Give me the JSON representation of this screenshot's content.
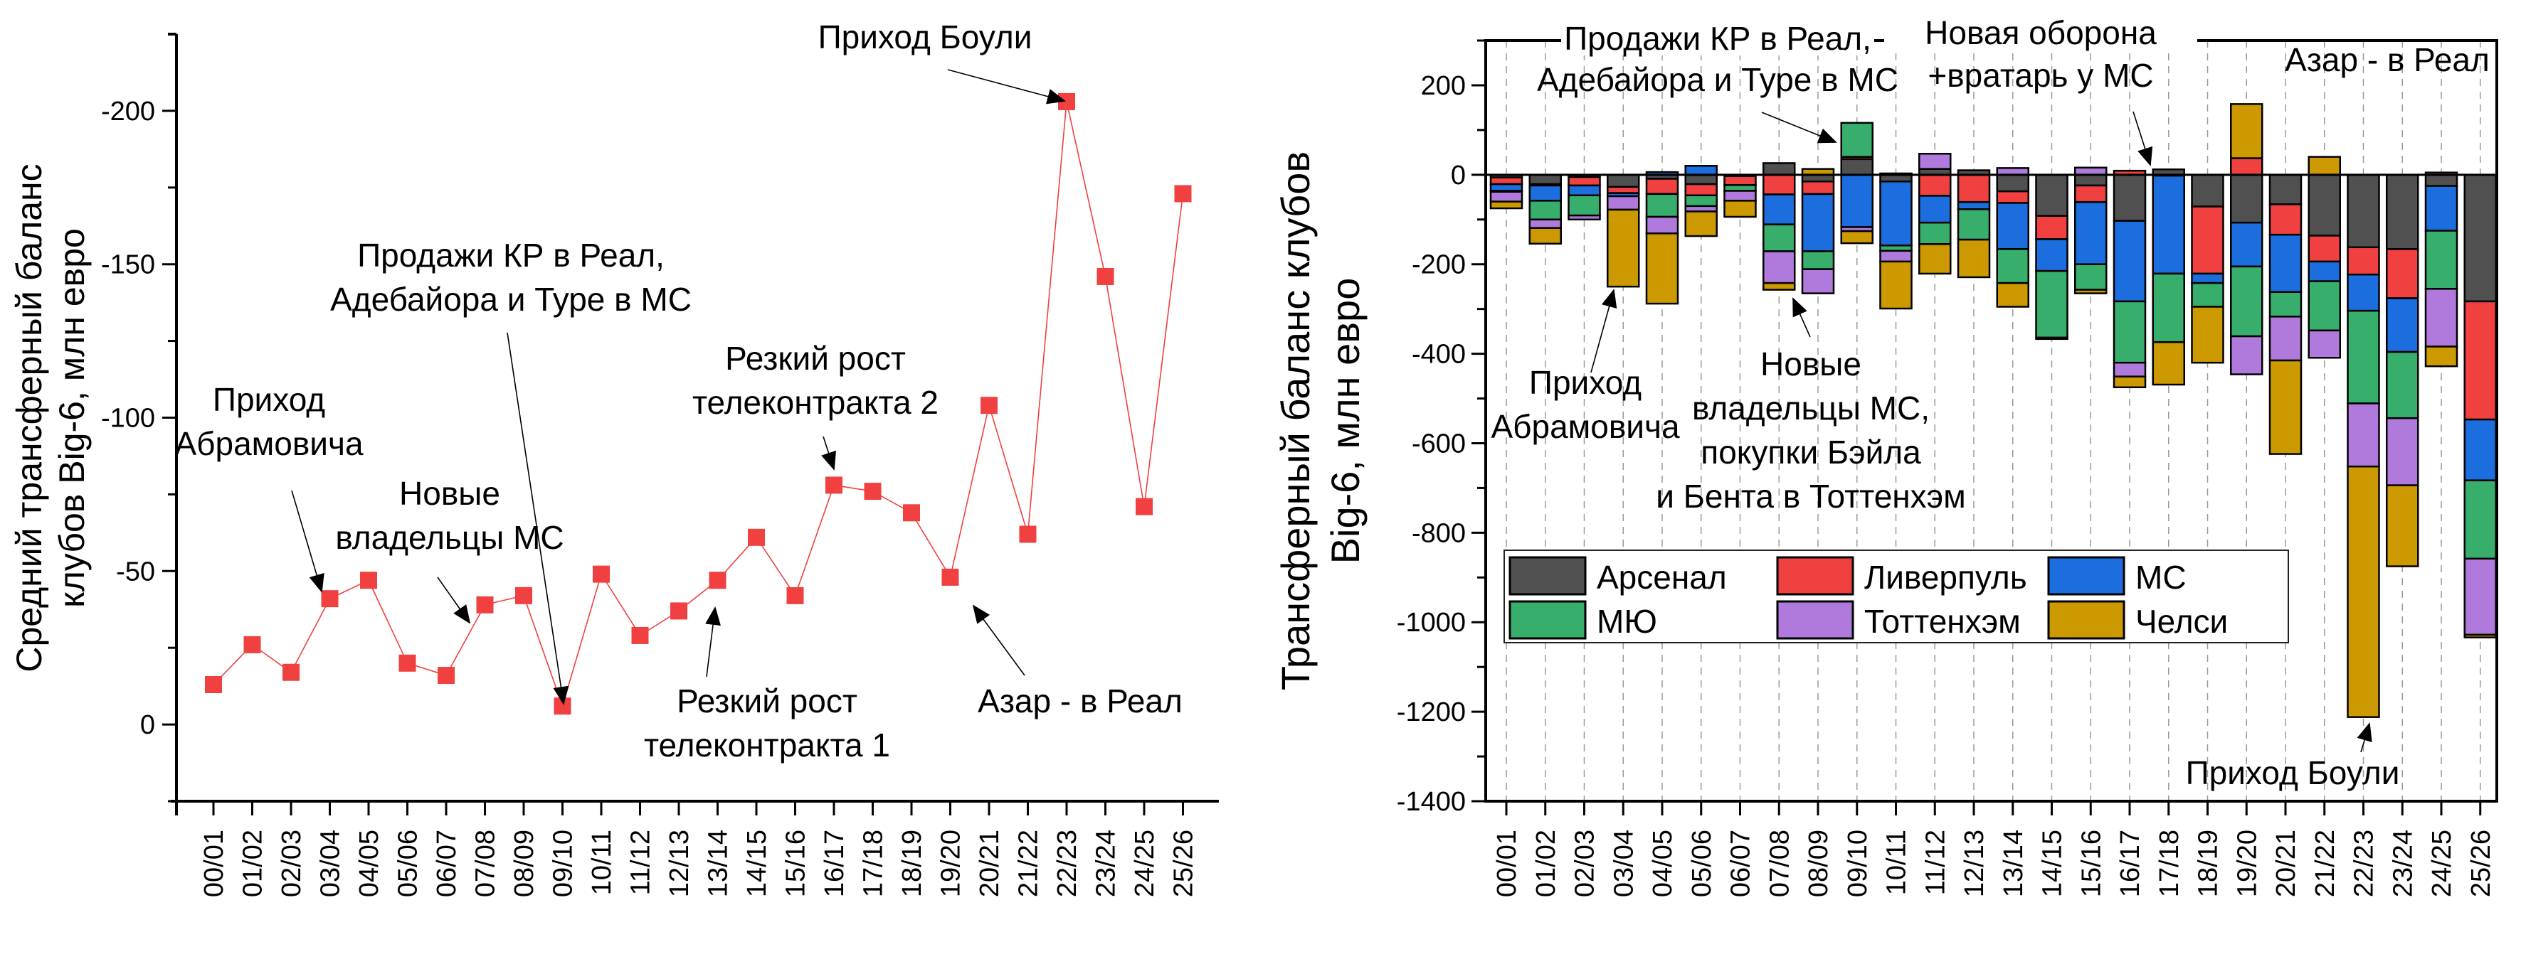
{
  "chart_data": [
    {
      "type": "line",
      "title": "",
      "xlabel": "",
      "ylabel": "Средний трансферный баланс клубов Big-6, млн евро",
      "ylabel_lines": [
        "Средний трансферный баланс",
        "клубов Big-6, млн евро"
      ],
      "y_inverted": true,
      "ylim": [
        25,
        -225
      ],
      "yticks": [
        0,
        -50,
        -100,
        -150,
        -200
      ],
      "grid": false,
      "categories": [
        "00/01",
        "01/02",
        "02/03",
        "03/04",
        "04/05",
        "05/06",
        "06/07",
        "07/08",
        "08/09",
        "09/10",
        "10/11",
        "11/12",
        "12/13",
        "13/14",
        "14/15",
        "15/16",
        "16/17",
        "17/18",
        "18/19",
        "19/20",
        "20/21",
        "21/22",
        "22/23",
        "23/24",
        "24/25",
        "25/26"
      ],
      "series": [
        {
          "name": "Средний трансферный баланс Big-6",
          "color": "#f04040",
          "marker": "square",
          "values": [
            -13,
            -26,
            -17,
            -41,
            -47,
            -20,
            -16,
            -39,
            -42,
            -6,
            -49,
            -29,
            -37,
            -47,
            -61,
            -42,
            -78,
            -76,
            -69,
            -48,
            -104,
            -62,
            -203,
            -146,
            -71,
            -173
          ]
        }
      ],
      "annotations": [
        {
          "lines": [
            "Приход",
            "Абрамовича"
          ],
          "target": "03/04"
        },
        {
          "lines": [
            "Новые",
            "владельцы МС"
          ],
          "target": "07/08"
        },
        {
          "lines": [
            "Продажи КР в Реал,",
            "Адебайора и Туре в МС"
          ],
          "target": "09/10"
        },
        {
          "lines": [
            "Резкий рост",
            "телеконтракта 1"
          ],
          "target": "13/14"
        },
        {
          "lines": [
            "Резкий рост",
            "телеконтракта 2"
          ],
          "target": "16/17"
        },
        {
          "lines": [
            "Азар - в Реал"
          ],
          "target": "19/20"
        },
        {
          "lines": [
            "Приход Боули"
          ],
          "target": "22/23"
        }
      ]
    },
    {
      "type": "bar",
      "stacked": true,
      "title": "",
      "xlabel": "",
      "ylabel": "Трансферный баланс клубов Big-6, млн евро",
      "ylabel_lines": [
        "Трансферный баланс клубов",
        "Big-6, млн евро"
      ],
      "ylim": [
        -1400,
        300
      ],
      "yticks": [
        200,
        0,
        -200,
        -400,
        -600,
        -800,
        -1000,
        -1200,
        -1400
      ],
      "grid": "vertical dashed",
      "legend_position": "lower-left",
      "categories": [
        "00/01",
        "01/02",
        "02/03",
        "03/04",
        "04/05",
        "05/06",
        "06/07",
        "07/08",
        "08/09",
        "09/10",
        "10/11",
        "11/12",
        "12/13",
        "13/14",
        "14/15",
        "15/16",
        "16/17",
        "17/18",
        "18/19",
        "19/20",
        "20/21",
        "21/22",
        "22/23",
        "23/24",
        "24/25",
        "25/26"
      ],
      "series": [
        {
          "name": "Арсенал",
          "color": "#505050",
          "values": [
            -6,
            -21,
            -5,
            -27,
            -9,
            -21,
            -3,
            26,
            -15,
            35,
            -15,
            13,
            10,
            -37,
            -92,
            -24,
            -103,
            12,
            -71,
            -107,
            -66,
            -136,
            -162,
            -166,
            -25,
            -283
          ]
        },
        {
          "name": "Ливерпуль",
          "color": "#f04040",
          "values": [
            -15,
            -3,
            -19,
            -14,
            -34,
            -25,
            -20,
            -44,
            -28,
            5,
            3,
            -47,
            -61,
            -26,
            -52,
            -37,
            9,
            -2,
            -150,
            37,
            -68,
            -58,
            -61,
            -110,
            5,
            -264
          ]
        },
        {
          "name": "МС",
          "color": "#1c6edf",
          "values": [
            -15,
            -34,
            -22,
            -7,
            6,
            20,
            0,
            -67,
            -128,
            -117,
            -143,
            -60,
            -16,
            -103,
            -71,
            -139,
            -180,
            -219,
            -21,
            -98,
            -128,
            -44,
            -81,
            -120,
            -100,
            -136
          ]
        },
        {
          "name": "МЮ",
          "color": "#38ae6c",
          "values": [
            -2,
            -42,
            -45,
            0,
            -51,
            -24,
            -13,
            -60,
            -40,
            76,
            -12,
            -48,
            -68,
            -76,
            -149,
            -57,
            -137,
            -153,
            -53,
            -156,
            -55,
            -110,
            -207,
            -148,
            -130,
            -175
          ]
        },
        {
          "name": "Тоттенхэм",
          "color": "#b07adc",
          "values": [
            -22,
            -19,
            -9,
            -30,
            -37,
            -12,
            -22,
            -71,
            -54,
            -9,
            -24,
            34,
            0,
            15,
            -3,
            16,
            -31,
            0,
            0,
            -85,
            -98,
            -61,
            -141,
            -150,
            -129,
            -170
          ]
        },
        {
          "name": "Челси",
          "color": "#cc9900",
          "values": [
            -15,
            -35,
            0,
            -172,
            -157,
            -55,
            -36,
            -15,
            13,
            -27,
            -105,
            -66,
            -84,
            -53,
            0,
            -8,
            -24,
            -95,
            -125,
            121,
            -209,
            40,
            -560,
            -181,
            -44,
            -6
          ]
        }
      ],
      "annotations": [
        {
          "lines": [
            "Приход",
            "Абрамовича"
          ],
          "target": "03/04"
        },
        {
          "lines": [
            "Новые",
            "владельцы МС,",
            "покупки Бэйла",
            "и Бента в Тоттенхэм"
          ],
          "target": "07/08"
        },
        {
          "lines": [
            "Продажи КР в Реал,",
            "Адебайора и Туре в МС"
          ],
          "target": "09/10"
        },
        {
          "lines": [
            "Новая оборона",
            "+вратарь у МС"
          ],
          "target": "17/18"
        },
        {
          "lines": [
            "Азар - в Реал"
          ],
          "target": "19/20"
        },
        {
          "lines": [
            "Приход Боули"
          ],
          "target": "22/23"
        }
      ]
    }
  ]
}
